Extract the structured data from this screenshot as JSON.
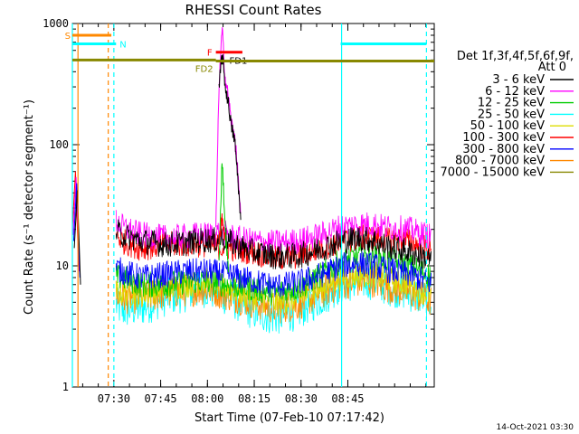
{
  "chart_data": {
    "type": "line",
    "title": "RHESSI Count Rates",
    "xlabel": "Start Time (07-Feb-10 07:17:42)",
    "ylabel": "Count Rate (s⁻¹ detector segment⁻¹)",
    "yscale": "log",
    "xlim_min": [
      0,
      116
    ],
    "ylim": [
      1,
      1000
    ],
    "x_ticks": [
      {
        "t": 13.3,
        "label": "07:30"
      },
      {
        "t": 28.3,
        "label": "07:45"
      },
      {
        "t": 43.3,
        "label": "08:00"
      },
      {
        "t": 58.3,
        "label": "08:15"
      },
      {
        "t": 73.3,
        "label": "08:30"
      },
      {
        "t": 88.3,
        "label": "08:45"
      }
    ],
    "y_ticks": [
      {
        "v": 1,
        "label": "1"
      },
      {
        "v": 10,
        "label": "10"
      },
      {
        "v": 100,
        "label": "100"
      },
      {
        "v": 1000,
        "label": "1000"
      }
    ],
    "legend": {
      "header1": "Det 1f,3f,4f,5f,6f,9f,",
      "header2": "Att 0",
      "entries": [
        {
          "label": "3 - 6 keV",
          "color": "#000000"
        },
        {
          "label": "6 - 12 keV",
          "color": "#ff00ff"
        },
        {
          "label": "12 - 25 keV",
          "color": "#00cc00"
        },
        {
          "label": "25 - 50 keV",
          "color": "#00ffff"
        },
        {
          "label": "50 - 100 keV",
          "color": "#dddd00"
        },
        {
          "label": "100 - 300 keV",
          "color": "#ff0000"
        },
        {
          "label": "300 - 800 keV",
          "color": "#0000ff"
        },
        {
          "label": "800 - 7000 keV",
          "color": "#ff8800"
        },
        {
          "label": "7000 - 15000 keV",
          "color": "#888800"
        }
      ]
    },
    "series_base": [
      {
        "name": "3 - 6 keV",
        "color": "#000000",
        "x": [
          0,
          13,
          16,
          22,
          30,
          37,
          40,
          43,
          45,
          48,
          52,
          58,
          65,
          72,
          80,
          86,
          92,
          97,
          99,
          108,
          116
        ],
        "y": [
          20,
          20,
          18,
          16,
          15,
          15.5,
          16,
          16.5,
          16,
          17,
          15,
          13,
          12,
          12,
          14,
          16,
          17,
          16,
          15,
          13,
          11
        ]
      },
      {
        "name": "6 - 12 keV",
        "color": "#ff00ff",
        "x": [
          0,
          13,
          16,
          22,
          30,
          37,
          40,
          43,
          48,
          52,
          58,
          65,
          72,
          80,
          86,
          92,
          97,
          99,
          108,
          116
        ],
        "y": [
          25,
          25,
          21,
          18,
          17,
          17.5,
          18,
          18,
          19,
          17,
          16,
          15.5,
          16,
          18,
          21,
          22,
          22,
          21,
          20,
          17
        ]
      },
      {
        "name": "12 - 25 keV",
        "color": "#00cc00",
        "x": [
          0,
          13,
          16,
          22,
          30,
          37,
          43,
          50,
          58,
          65,
          72,
          80,
          86,
          92,
          97,
          99,
          108,
          116
        ],
        "y": [
          8,
          8,
          8,
          7,
          7,
          7.5,
          7.5,
          7,
          6.5,
          6,
          6.5,
          8.5,
          11,
          12,
          12,
          11.5,
          10,
          8
        ]
      },
      {
        "name": "25 - 50 keV",
        "color": "#00ffff",
        "x": [
          0,
          13,
          16,
          22,
          30,
          37,
          43,
          50,
          58,
          65,
          72,
          80,
          86,
          92,
          97,
          99,
          108,
          116
        ],
        "y": [
          5,
          5,
          4.3,
          4.5,
          5.5,
          6,
          6.5,
          5.5,
          4.2,
          3.8,
          4.2,
          5.5,
          7,
          7.5,
          7.5,
          7,
          6,
          5
        ]
      },
      {
        "name": "50 - 100 keV",
        "color": "#dddd00",
        "x": [
          0,
          13,
          16,
          22,
          30,
          37,
          43,
          50,
          58,
          65,
          72,
          80,
          86,
          92,
          97,
          99,
          108,
          116
        ],
        "y": [
          6,
          6,
          6,
          5.8,
          6.5,
          7,
          7.5,
          6.5,
          5.5,
          5,
          5.3,
          6.5,
          8,
          8.5,
          8.5,
          8,
          7,
          5.5
        ]
      },
      {
        "name": "100 - 300 keV",
        "color": "#ff0000",
        "x": [
          0,
          13,
          16,
          22,
          30,
          37,
          43,
          50,
          58,
          65,
          72,
          80,
          86,
          92,
          97,
          99,
          108,
          116
        ],
        "y": [
          20,
          20,
          16,
          14,
          15,
          15,
          15,
          14,
          13,
          11.5,
          12,
          14,
          16,
          17,
          17,
          16.5,
          16,
          13
        ]
      },
      {
        "name": "300 - 800 keV",
        "color": "#0000ff",
        "x": [
          0,
          13,
          16,
          22,
          30,
          37,
          43,
          50,
          58,
          65,
          72,
          80,
          86,
          92,
          97,
          99,
          108,
          116
        ],
        "y": [
          10,
          10,
          9,
          8,
          8.5,
          9,
          9,
          8.5,
          7.5,
          6.8,
          7.2,
          8.5,
          10,
          10.5,
          10,
          9.5,
          8.5,
          7
        ]
      },
      {
        "name": "800 - 7000 keV",
        "color": "#ff8800",
        "x": [
          0,
          13,
          16,
          22,
          30,
          37,
          43,
          50,
          58,
          65,
          72,
          80,
          86,
          92,
          97,
          99,
          108,
          116
        ],
        "y": [
          6,
          6,
          5.5,
          5.5,
          6,
          6.3,
          6.5,
          5.8,
          5,
          4.5,
          4.8,
          6,
          7.2,
          7.5,
          7.5,
          7,
          6,
          5
        ]
      }
    ],
    "flare_peaks": [
      {
        "name": "6 - 12 keV",
        "color": "#ff00ff",
        "x": [
          46,
          47,
          48,
          49,
          50,
          51,
          52,
          53,
          54
        ],
        "y": [
          20,
          300,
          900,
          350,
          250,
          150,
          120,
          60,
          25
        ]
      },
      {
        "name": "3 - 6 keV",
        "color": "#000000",
        "x": [
          47,
          48,
          49,
          50,
          51,
          52,
          53,
          54
        ],
        "y": [
          280,
          600,
          300,
          220,
          140,
          110,
          55,
          22
        ]
      },
      {
        "name": "12 - 25 keV",
        "color": "#00cc00",
        "x": [
          47,
          48,
          49,
          50
        ],
        "y": [
          10,
          80,
          20,
          9
        ]
      },
      {
        "name": "100 - 300 keV",
        "color": "#ff0000",
        "x": [
          47,
          48,
          49
        ],
        "y": [
          16,
          25,
          16
        ]
      }
    ],
    "early_data": {
      "x": [
        0,
        1,
        2
      ],
      "y": [
        20,
        60,
        10
      ]
    },
    "vertical_markers": [
      {
        "t": 0.0,
        "color": "#00ffff",
        "style": "solid"
      },
      {
        "t": 1.8,
        "color": "#ff8800",
        "style": "solid"
      },
      {
        "t": 11.5,
        "color": "#ff8800",
        "style": "dashed"
      },
      {
        "t": 13.3,
        "color": "#00ffff",
        "style": "dashed"
      },
      {
        "t": 86.3,
        "color": "#00ffff",
        "style": "solid"
      },
      {
        "t": 113.5,
        "color": "#00ffff",
        "style": "dashed"
      }
    ],
    "flag_bars": [
      {
        "label": "S",
        "color": "#ff8800",
        "t0": 0,
        "t1": 12.5,
        "v": 800
      },
      {
        "label": "N",
        "color": "#00ffff",
        "t0": 0,
        "t1": 14,
        "v": 680
      },
      {
        "label": "N",
        "color": "#00ffff",
        "t0": 86,
        "t1": 113.5,
        "v": 680
      },
      {
        "label": "F",
        "color": "#ff0000",
        "t0": 46,
        "t1": 54.5,
        "v": 580
      },
      {
        "label": "FD1",
        "color": "#000000",
        "t0": 48,
        "t1": 48,
        "v": 500
      },
      {
        "label": "FD2",
        "color": "#888800",
        "t0": 0,
        "t1": 116,
        "v": 490,
        "t_end_low": 46,
        "v_low": 500
      }
    ]
  },
  "footer": {
    "date": "14-Oct-2021 03:30"
  }
}
